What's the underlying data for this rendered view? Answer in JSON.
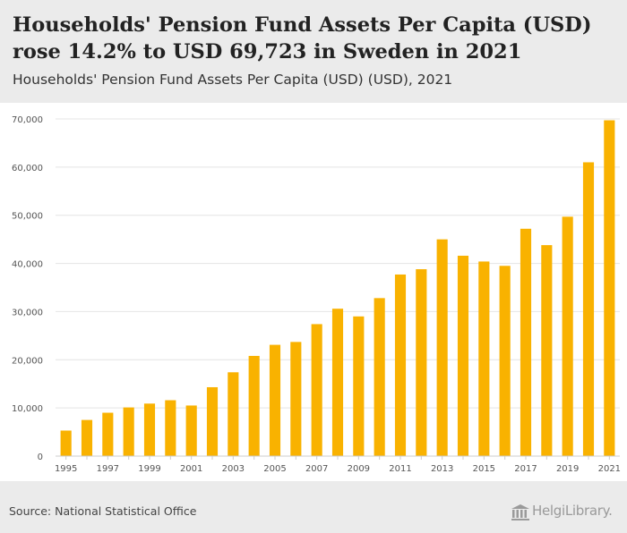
{
  "header": {
    "title": "Households' Pension Fund Assets Per Capita (USD) rose 14.2% to USD 69,723 in Sweden in 2021",
    "subtitle": "Households' Pension Fund Assets Per Capita (USD) (USD), 2021"
  },
  "footer": {
    "source": "Source: National Statistical Office",
    "logo_text": "HelgiLibrary."
  },
  "colors": {
    "bar": "#f9b200",
    "grid": "#e4e4e4",
    "axis_text": "#555555",
    "background": "#ebebeb",
    "plot_background": "#ffffff"
  },
  "chart_data": {
    "type": "bar",
    "title": "Households' Pension Fund Assets Per Capita (USD) rose 14.2% to USD 69,723 in Sweden in 2021",
    "xlabel": "",
    "ylabel": "",
    "ylim": [
      0,
      70000
    ],
    "yticks": [
      0,
      10000,
      20000,
      30000,
      40000,
      50000,
      60000,
      70000
    ],
    "ytick_labels": [
      "0",
      "10,000",
      "20,000",
      "30,000",
      "40,000",
      "50,000",
      "60,000",
      "70,000"
    ],
    "grid": true,
    "categories": [
      "1995",
      "1996",
      "1997",
      "1998",
      "1999",
      "2000",
      "2001",
      "2002",
      "2003",
      "2004",
      "2005",
      "2006",
      "2007",
      "2008",
      "2009",
      "2010",
      "2011",
      "2012",
      "2013",
      "2014",
      "2015",
      "2016",
      "2017",
      "2018",
      "2019",
      "2020",
      "2021"
    ],
    "values": [
      5300,
      7500,
      9000,
      10100,
      10900,
      11600,
      10500,
      14300,
      17400,
      20800,
      23100,
      23700,
      27400,
      30600,
      29000,
      32800,
      37700,
      38800,
      45000,
      41600,
      40400,
      39500,
      47200,
      43800,
      49700,
      61000,
      69723
    ],
    "x_tick_labels": [
      "1995",
      "1997",
      "1999",
      "2001",
      "2003",
      "2005",
      "2007",
      "2009",
      "2011",
      "2013",
      "2015",
      "2017",
      "2019",
      "2021"
    ]
  }
}
